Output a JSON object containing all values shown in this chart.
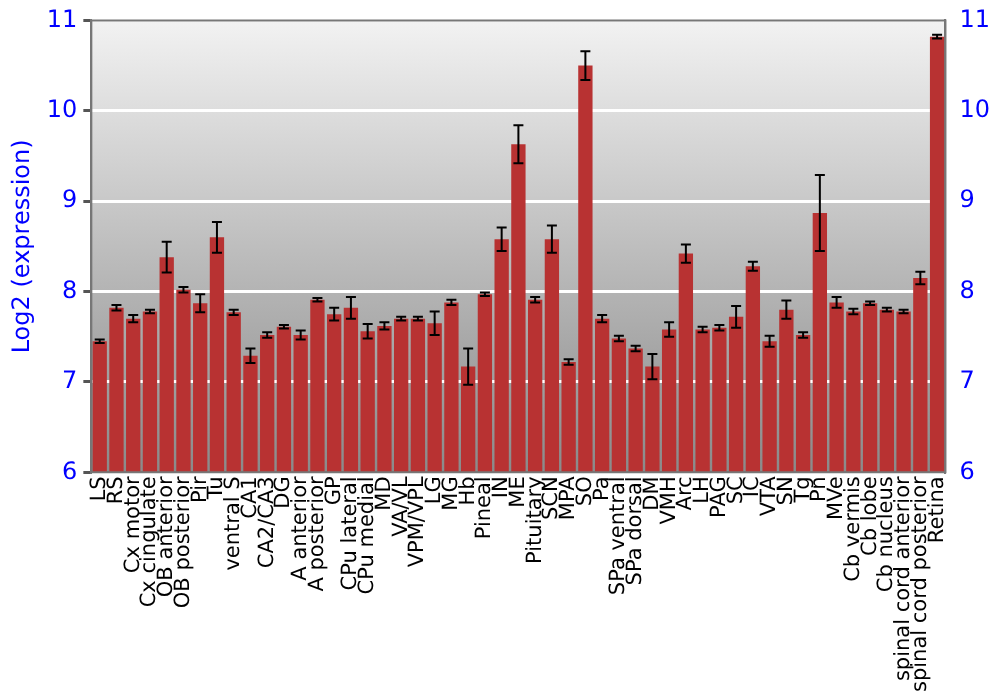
{
  "chart_data": {
    "type": "bar",
    "ylabel": "Log2 (expression)",
    "categories": [
      "LS",
      "RS",
      "Cx motor",
      "Cx cingulate",
      "OB anterior",
      "OB posterior",
      "Pir",
      "Tu",
      "ventral S",
      "CA1",
      "CA2/CA3",
      "DG",
      "A anterior",
      "A posterior",
      "GP",
      "CPu lateral",
      "CPu medial",
      "MD",
      "VA/VL",
      "VPM/VPL",
      "LG",
      "MG",
      "Hb",
      "Pineal",
      "IN",
      "ME",
      "Pituitary",
      "SCN",
      "MPA",
      "SO",
      "Pa",
      "SPa ventral",
      "SPa dorsal",
      "DM",
      "VMH",
      "Arc",
      "LH",
      "PAG",
      "SC",
      "IC",
      "VTA",
      "SN",
      "Tg",
      "Pn",
      "MVe",
      "Cb vermis",
      "Cb lobe",
      "Cb nucleus",
      "spinal cord anterior",
      "spinal cord posterior",
      "Retina"
    ],
    "values": [
      7.45,
      7.82,
      7.7,
      7.78,
      8.38,
      8.02,
      7.87,
      8.6,
      7.77,
      7.29,
      7.52,
      7.61,
      7.52,
      7.91,
      7.75,
      7.82,
      7.56,
      7.62,
      7.7,
      7.7,
      7.65,
      7.88,
      7.17,
      7.97,
      8.58,
      9.63,
      7.91,
      8.58,
      7.22,
      10.5,
      7.7,
      7.48,
      7.37,
      7.17,
      7.58,
      8.42,
      7.58,
      7.6,
      7.72,
      8.28,
      7.45,
      7.8,
      7.52,
      8.87,
      7.88,
      7.78,
      7.87,
      7.8,
      7.78,
      8.15,
      10.82
    ],
    "errors": [
      0.02,
      0.03,
      0.04,
      0.02,
      0.17,
      0.03,
      0.1,
      0.17,
      0.03,
      0.08,
      0.03,
      0.02,
      0.05,
      0.02,
      0.07,
      0.12,
      0.08,
      0.04,
      0.02,
      0.02,
      0.13,
      0.03,
      0.2,
      0.02,
      0.13,
      0.21,
      0.03,
      0.15,
      0.03,
      0.16,
      0.04,
      0.03,
      0.03,
      0.14,
      0.08,
      0.1,
      0.03,
      0.03,
      0.12,
      0.05,
      0.06,
      0.1,
      0.03,
      0.42,
      0.06,
      0.03,
      0.02,
      0.02,
      0.02,
      0.07,
      0.02
    ],
    "color": "#b83232",
    "ylim": [
      6,
      11
    ],
    "yticks": [
      6,
      7,
      8,
      9,
      10,
      11
    ],
    "y2lim": [
      6,
      11
    ],
    "y2ticks": [
      6,
      7,
      8,
      9,
      10,
      11
    ],
    "grid": "y",
    "legend": false
  }
}
